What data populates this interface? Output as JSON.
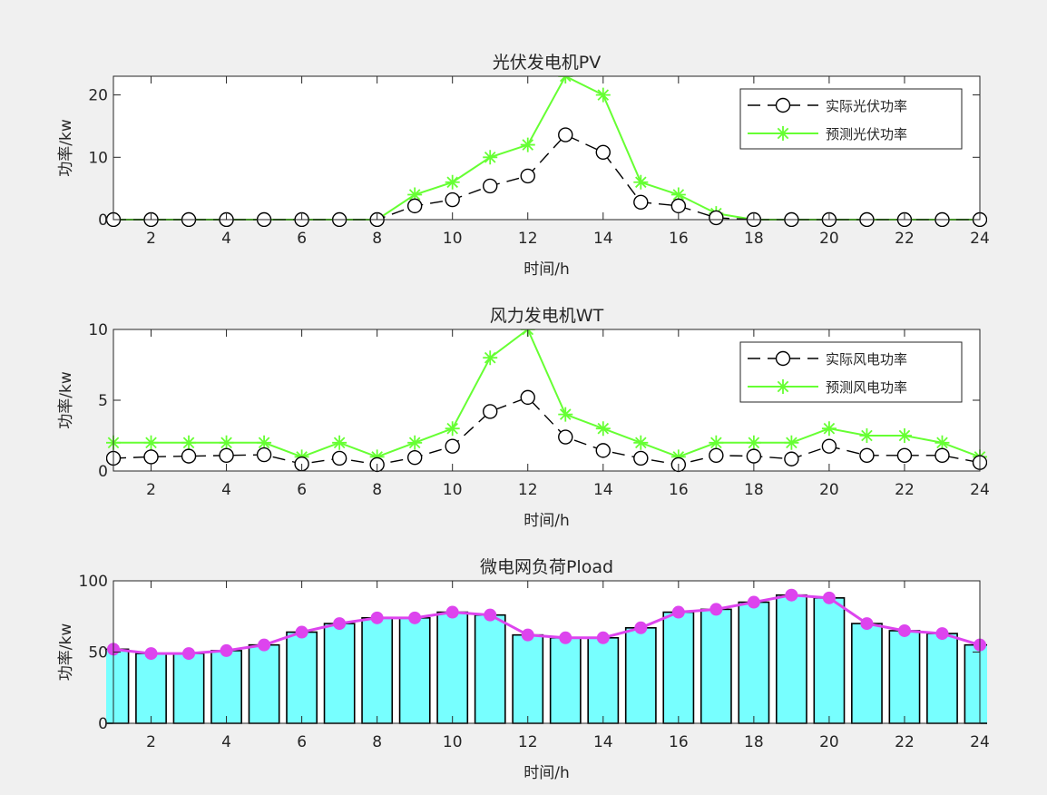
{
  "chart_data": [
    {
      "type": "line",
      "title": "光伏发电机PV",
      "xlabel": "时间/h",
      "ylabel": "功率/kw",
      "x": [
        1,
        2,
        3,
        4,
        5,
        6,
        7,
        8,
        9,
        10,
        11,
        12,
        13,
        14,
        15,
        16,
        17,
        18,
        19,
        20,
        21,
        22,
        23,
        24
      ],
      "xticks": [
        2,
        4,
        6,
        8,
        10,
        12,
        14,
        16,
        18,
        20,
        22,
        24
      ],
      "xlim": [
        1,
        24
      ],
      "ylim": [
        0,
        23
      ],
      "yticks": [
        0,
        10,
        20
      ],
      "legend_position": "top-right",
      "series": [
        {
          "name": "实际光伏功率",
          "color": "#000000",
          "marker": "circle",
          "dash": true,
          "values": [
            0,
            0,
            0,
            0,
            0,
            0,
            0,
            0,
            2.2,
            3.2,
            5.4,
            7.0,
            13.6,
            10.8,
            2.8,
            2.2,
            0.3,
            0,
            0,
            0,
            0,
            0,
            0,
            0
          ]
        },
        {
          "name": "预测光伏功率",
          "color": "#66ff33",
          "marker": "star",
          "dash": false,
          "values": [
            0,
            0,
            0,
            0,
            0,
            0,
            0,
            0,
            4,
            6,
            10,
            12,
            23,
            20,
            6,
            4,
            1,
            0,
            0,
            0,
            0,
            0,
            0,
            0
          ]
        }
      ]
    },
    {
      "type": "line",
      "title": "风力发电机WT",
      "xlabel": "时间/h",
      "ylabel": "功率/kw",
      "x": [
        1,
        2,
        3,
        4,
        5,
        6,
        7,
        8,
        9,
        10,
        11,
        12,
        13,
        14,
        15,
        16,
        17,
        18,
        19,
        20,
        21,
        22,
        23,
        24
      ],
      "xticks": [
        2,
        4,
        6,
        8,
        10,
        12,
        14,
        16,
        18,
        20,
        22,
        24
      ],
      "xlim": [
        1,
        24
      ],
      "ylim": [
        0,
        10
      ],
      "yticks": [
        0,
        5,
        10
      ],
      "legend_position": "top-right",
      "series": [
        {
          "name": "实际风电功率",
          "color": "#000000",
          "marker": "circle",
          "dash": true,
          "values": [
            0.9,
            1.0,
            1.05,
            1.1,
            1.15,
            0.5,
            0.9,
            0.45,
            0.95,
            1.75,
            4.2,
            5.2,
            2.4,
            1.45,
            0.9,
            0.45,
            1.1,
            1.05,
            0.85,
            1.75,
            1.1,
            1.1,
            1.1,
            0.6
          ]
        },
        {
          "name": "预测风电功率",
          "color": "#66ff33",
          "marker": "star",
          "dash": false,
          "values": [
            2,
            2,
            2,
            2,
            2,
            1,
            2,
            1,
            2,
            3,
            8,
            10,
            4,
            3,
            2,
            1,
            2,
            2,
            2,
            3,
            2.5,
            2.5,
            2,
            1
          ]
        }
      ]
    },
    {
      "type": "bar",
      "title": "微电网负荷Pload",
      "xlabel": "时间/h",
      "ylabel": "功率/kw",
      "x": [
        1,
        2,
        3,
        4,
        5,
        6,
        7,
        8,
        9,
        10,
        11,
        12,
        13,
        14,
        15,
        16,
        17,
        18,
        19,
        20,
        21,
        22,
        23,
        24
      ],
      "xticks": [
        2,
        4,
        6,
        8,
        10,
        12,
        14,
        16,
        18,
        20,
        22,
        24
      ],
      "xlim": [
        1,
        24
      ],
      "ylim": [
        0,
        100
      ],
      "yticks": [
        0,
        50,
        100
      ],
      "bar_color": "#77ffff",
      "line_color": "#dd44ee",
      "values": [
        52,
        49,
        49,
        51,
        55,
        64,
        70,
        74,
        74,
        78,
        76,
        62,
        60,
        60,
        67,
        78,
        80,
        85,
        90,
        88,
        70,
        65,
        63,
        55
      ]
    }
  ]
}
